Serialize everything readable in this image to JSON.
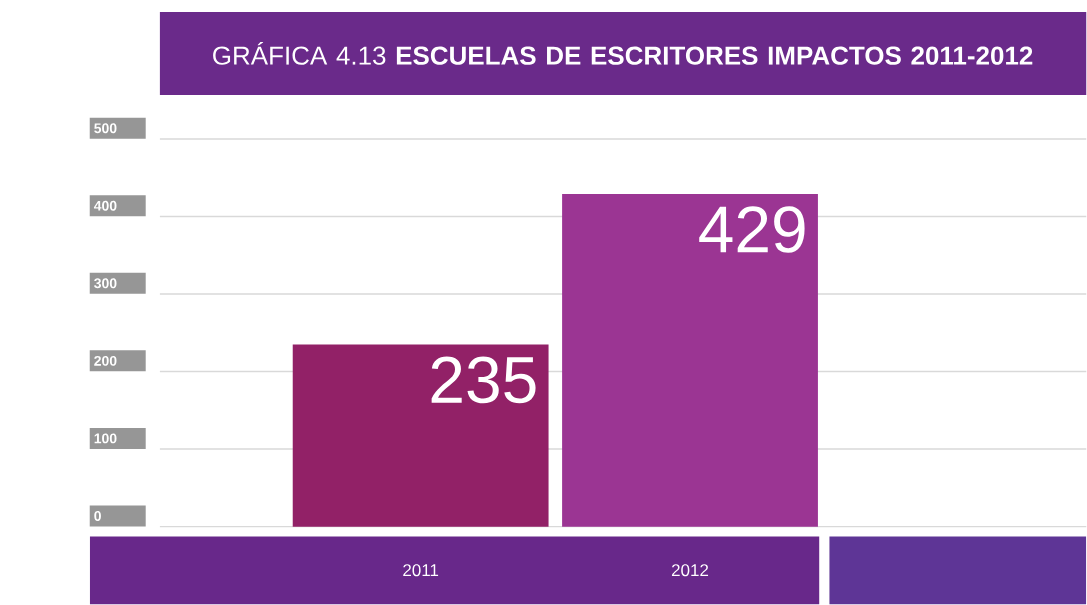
{
  "chart_data": {
    "type": "bar",
    "title": "GRÁFICA 4.13 **ESCUELAS DE ESCRITORES IMPACTOS 2011-2012**",
    "categories": [
      "2011",
      "2012"
    ],
    "values": [
      235,
      429
    ],
    "colors": [
      "#922167",
      "#9b3593"
    ],
    "ylim": [
      0,
      500
    ],
    "yticks": [
      0,
      100,
      200,
      300,
      400,
      500
    ],
    "grid": "y",
    "data_labels": true
  }
}
